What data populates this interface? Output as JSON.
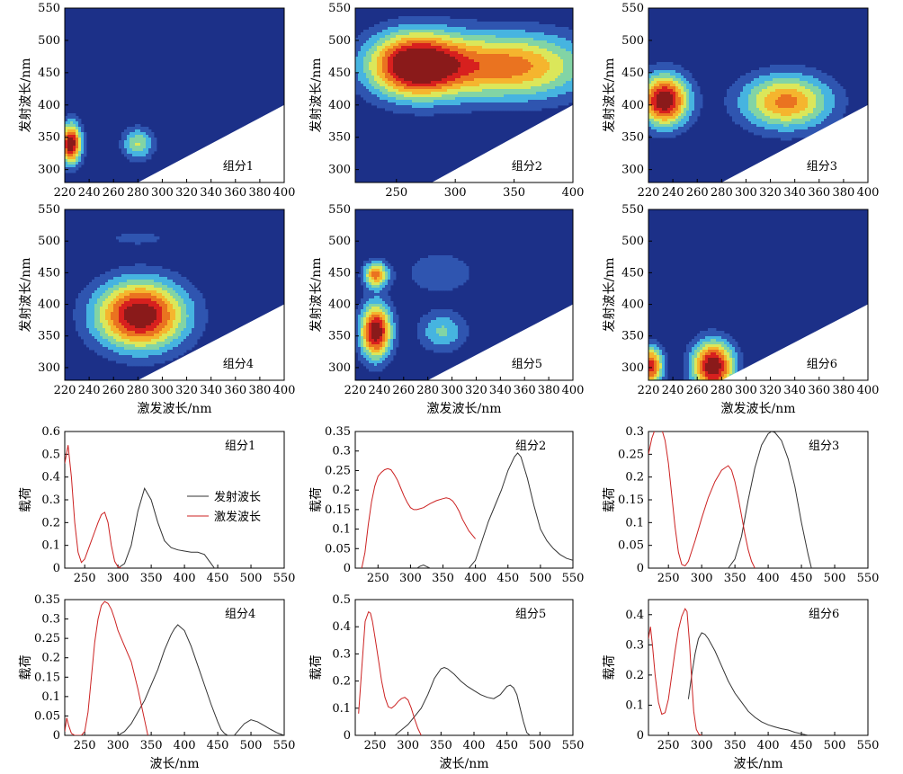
{
  "colors": {
    "contour_levels": [
      "#1c3088",
      "#2f55b0",
      "#46b4e0",
      "#82d4a5",
      "#dbe75a",
      "#f5b52e",
      "#ea7320",
      "#d7201e",
      "#8a1a1a"
    ],
    "emission_line": "#333333",
    "excitation_line": "#cc2222"
  },
  "legend": {
    "emission": "发射波长",
    "excitation": "激发波长"
  },
  "chart_data": [
    {
      "type": "heatmap",
      "label": "组分1",
      "xlabel": "",
      "ylabel": "发射波长/nm",
      "xlim": [
        220,
        400
      ],
      "ylim": [
        280,
        550
      ],
      "xticks": [
        220,
        240,
        260,
        280,
        300,
        320,
        340,
        360,
        380,
        400
      ],
      "yticks": [
        300,
        350,
        400,
        450,
        500,
        550
      ],
      "peaks": [
        {
          "ex": 225,
          "em": 340,
          "w": 6,
          "h": 22,
          "a": 1.0
        },
        {
          "ex": 280,
          "em": 340,
          "w": 9,
          "h": 17,
          "a": 0.45
        }
      ]
    },
    {
      "type": "heatmap",
      "label": "组分2",
      "xlabel": "",
      "ylabel": "发射波长/nm",
      "xlim": [
        215,
        400
      ],
      "ylim": [
        280,
        550
      ],
      "xticks": [
        250,
        300,
        350,
        400
      ],
      "yticks": [
        300,
        350,
        400,
        450,
        500,
        550
      ],
      "peaks": [
        {
          "ex": 265,
          "em": 462,
          "w": 28,
          "h": 35,
          "a": 1.0
        },
        {
          "ex": 345,
          "em": 460,
          "w": 48,
          "h": 36,
          "a": 0.72
        }
      ]
    },
    {
      "type": "heatmap",
      "label": "组分3",
      "xlabel": "",
      "ylabel": "发射波长/nm",
      "xlim": [
        220,
        400
      ],
      "ylim": [
        280,
        550
      ],
      "xticks": [
        220,
        240,
        260,
        280,
        300,
        320,
        340,
        360,
        380,
        400
      ],
      "yticks": [
        300,
        350,
        400,
        450,
        500,
        550
      ],
      "peaks": [
        {
          "ex": 233,
          "em": 407,
          "w": 14,
          "h": 28,
          "a": 1.0
        },
        {
          "ex": 333,
          "em": 405,
          "w": 26,
          "h": 30,
          "a": 0.7
        }
      ]
    },
    {
      "type": "heatmap",
      "label": "组分4",
      "xlabel": "激发波长/nm",
      "ylabel": "发射波长/nm",
      "xlim": [
        220,
        400
      ],
      "ylim": [
        280,
        550
      ],
      "xticks": [
        220,
        240,
        260,
        280,
        300,
        320,
        340,
        360,
        380,
        400
      ],
      "yticks": [
        300,
        350,
        400,
        450,
        500,
        550
      ],
      "peaks": [
        {
          "ex": 282,
          "em": 383,
          "w": 26,
          "h": 38,
          "a": 1.0
        },
        {
          "ex": 280,
          "em": 505,
          "w": 15,
          "h": 7,
          "a": 0.2
        }
      ]
    },
    {
      "type": "heatmap",
      "label": "组分5",
      "xlabel": "激发波长/nm",
      "ylabel": "发射波长/nm",
      "xlim": [
        220,
        400
      ],
      "ylim": [
        280,
        550
      ],
      "xticks": [
        220,
        240,
        260,
        280,
        300,
        320,
        340,
        360,
        380,
        400
      ],
      "yticks": [
        300,
        350,
        400,
        450,
        500,
        550
      ],
      "peaks": [
        {
          "ex": 237,
          "em": 357,
          "w": 9,
          "h": 30,
          "a": 1.0
        },
        {
          "ex": 237,
          "em": 447,
          "w": 7,
          "h": 14,
          "a": 0.7
        },
        {
          "ex": 292,
          "em": 357,
          "w": 14,
          "h": 22,
          "a": 0.35
        },
        {
          "ex": 290,
          "em": 450,
          "w": 24,
          "h": 28,
          "a": 0.18
        }
      ]
    },
    {
      "type": "heatmap",
      "label": "组分6",
      "xlabel": "激发波长/nm",
      "ylabel": "发射波长/nm",
      "xlim": [
        220,
        400
      ],
      "ylim": [
        280,
        550
      ],
      "xticks": [
        220,
        240,
        260,
        280,
        300,
        320,
        340,
        360,
        380,
        400
      ],
      "yticks": [
        300,
        350,
        400,
        450,
        500,
        550
      ],
      "peaks": [
        {
          "ex": 222,
          "em": 302,
          "w": 7,
          "h": 22,
          "a": 0.85
        },
        {
          "ex": 273,
          "em": 302,
          "w": 12,
          "h": 28,
          "a": 1.0
        }
      ]
    },
    {
      "type": "line",
      "label": "组分1",
      "xlabel": "",
      "ylabel": "载荷",
      "xlim": [
        220,
        550
      ],
      "ylim": [
        0,
        0.6
      ],
      "xticks": [
        250,
        300,
        350,
        400,
        450,
        500,
        550
      ],
      "yticks": [
        0,
        0.1,
        0.2,
        0.3,
        0.4,
        0.5,
        0.6
      ],
      "series": [
        {
          "role": "emission",
          "x": [
            300,
            310,
            320,
            330,
            340,
            350,
            360,
            370,
            380,
            390,
            400,
            410,
            420,
            430,
            440,
            445
          ],
          "y": [
            0,
            0.02,
            0.1,
            0.25,
            0.35,
            0.3,
            0.2,
            0.12,
            0.09,
            0.08,
            0.075,
            0.07,
            0.07,
            0.06,
            0.02,
            0
          ]
        },
        {
          "role": "excitation",
          "x": [
            220,
            225,
            230,
            235,
            240,
            245,
            250,
            255,
            260,
            265,
            270,
            275,
            280,
            285,
            290,
            295,
            300,
            305
          ],
          "y": [
            0.46,
            0.54,
            0.4,
            0.2,
            0.07,
            0.025,
            0.04,
            0.08,
            0.12,
            0.16,
            0.2,
            0.235,
            0.245,
            0.2,
            0.1,
            0.03,
            0.005,
            0
          ]
        }
      ]
    },
    {
      "type": "line",
      "label": "组分2",
      "xlabel": "",
      "ylabel": "载荷",
      "xlim": [
        215,
        550
      ],
      "ylim": [
        0,
        0.35
      ],
      "xticks": [
        250,
        300,
        350,
        400,
        450,
        500,
        550
      ],
      "yticks": [
        0,
        0.05,
        0.1,
        0.15,
        0.2,
        0.25,
        0.3,
        0.35
      ],
      "series": [
        {
          "role": "emission",
          "x": [
            310,
            315,
            320,
            325,
            330,
            390,
            400,
            410,
            420,
            430,
            440,
            450,
            460,
            465,
            470,
            480,
            490,
            500,
            510,
            520,
            530,
            540,
            550
          ],
          "y": [
            0,
            0.005,
            0.008,
            0.004,
            0,
            0,
            0.02,
            0.07,
            0.12,
            0.16,
            0.2,
            0.25,
            0.285,
            0.295,
            0.285,
            0.23,
            0.16,
            0.1,
            0.07,
            0.05,
            0.035,
            0.025,
            0.02
          ]
        },
        {
          "role": "excitation",
          "x": [
            225,
            230,
            235,
            240,
            245,
            250,
            255,
            260,
            265,
            270,
            275,
            280,
            285,
            290,
            295,
            300,
            305,
            310,
            320,
            330,
            340,
            350,
            355,
            360,
            365,
            370,
            375,
            380,
            390,
            400
          ],
          "y": [
            0,
            0.04,
            0.11,
            0.17,
            0.21,
            0.235,
            0.245,
            0.252,
            0.255,
            0.252,
            0.24,
            0.225,
            0.205,
            0.185,
            0.168,
            0.155,
            0.15,
            0.15,
            0.155,
            0.165,
            0.173,
            0.178,
            0.18,
            0.178,
            0.172,
            0.16,
            0.145,
            0.125,
            0.095,
            0.075
          ]
        }
      ]
    },
    {
      "type": "line",
      "label": "组分3",
      "xlabel": "",
      "ylabel": "载荷",
      "xlim": [
        220,
        550
      ],
      "ylim": [
        0,
        0.3
      ],
      "xticks": [
        250,
        300,
        350,
        400,
        450,
        500,
        550
      ],
      "yticks": [
        0,
        0.05,
        0.1,
        0.15,
        0.2,
        0.25,
        0.3
      ],
      "series": [
        {
          "role": "emission",
          "x": [
            340,
            350,
            360,
            370,
            380,
            390,
            400,
            405,
            410,
            420,
            430,
            440,
            450,
            460,
            465
          ],
          "y": [
            0,
            0.02,
            0.07,
            0.15,
            0.22,
            0.27,
            0.295,
            0.3,
            0.298,
            0.28,
            0.24,
            0.18,
            0.1,
            0.03,
            0
          ]
        },
        {
          "role": "excitation",
          "x": [
            220,
            225,
            230,
            235,
            240,
            245,
            250,
            255,
            260,
            265,
            270,
            275,
            280,
            290,
            300,
            310,
            320,
            330,
            335,
            340,
            345,
            350,
            355,
            360,
            365,
            370,
            375,
            380
          ],
          "y": [
            0.25,
            0.285,
            0.305,
            0.31,
            0.305,
            0.28,
            0.23,
            0.16,
            0.09,
            0.035,
            0.008,
            0.005,
            0.015,
            0.06,
            0.11,
            0.155,
            0.19,
            0.215,
            0.22,
            0.225,
            0.215,
            0.19,
            0.155,
            0.115,
            0.075,
            0.04,
            0.015,
            0
          ]
        }
      ]
    },
    {
      "type": "line",
      "label": "组分4",
      "xlabel": "波长/nm",
      "ylabel": "载荷",
      "xlim": [
        220,
        550
      ],
      "ylim": [
        0,
        0.35
      ],
      "xticks": [
        250,
        300,
        350,
        400,
        450,
        500,
        550
      ],
      "yticks": [
        0,
        0.05,
        0.1,
        0.15,
        0.2,
        0.25,
        0.3,
        0.35
      ],
      "series": [
        {
          "role": "emission",
          "x": [
            300,
            310,
            320,
            330,
            340,
            350,
            360,
            370,
            380,
            385,
            390,
            400,
            410,
            420,
            430,
            440,
            450,
            455,
            460,
            465,
            470,
            475,
            480,
            490,
            500,
            510,
            520,
            530,
            540,
            550
          ],
          "y": [
            0,
            0.01,
            0.03,
            0.06,
            0.09,
            0.13,
            0.17,
            0.22,
            0.26,
            0.275,
            0.285,
            0.27,
            0.23,
            0.18,
            0.13,
            0.08,
            0.035,
            0.015,
            0.005,
            0,
            0,
            0,
            0.01,
            0.03,
            0.04,
            0.035,
            0.025,
            0.015,
            0.006,
            0
          ]
        },
        {
          "role": "excitation",
          "x": [
            220,
            223,
            226,
            230,
            235,
            240,
            245,
            250,
            255,
            260,
            265,
            270,
            275,
            280,
            285,
            290,
            295,
            300,
            310,
            320,
            330,
            335,
            340,
            345
          ],
          "y": [
            0.01,
            0.045,
            0.025,
            0.005,
            0,
            0,
            0,
            0.01,
            0.06,
            0.15,
            0.24,
            0.3,
            0.335,
            0.345,
            0.34,
            0.325,
            0.3,
            0.27,
            0.23,
            0.19,
            0.12,
            0.08,
            0.04,
            0
          ]
        }
      ]
    },
    {
      "type": "line",
      "label": "组分5",
      "xlabel": "波长/nm",
      "ylabel": "载荷",
      "xlim": [
        220,
        550
      ],
      "ylim": [
        0,
        0.5
      ],
      "xticks": [
        250,
        300,
        350,
        400,
        450,
        500,
        550
      ],
      "yticks": [
        0,
        0.1,
        0.2,
        0.3,
        0.4,
        0.5
      ],
      "series": [
        {
          "role": "emission",
          "x": [
            280,
            290,
            300,
            310,
            320,
            330,
            340,
            350,
            355,
            360,
            370,
            380,
            390,
            400,
            410,
            420,
            430,
            440,
            450,
            455,
            460,
            465,
            470,
            475,
            480,
            485
          ],
          "y": [
            0,
            0.02,
            0.04,
            0.07,
            0.1,
            0.15,
            0.21,
            0.245,
            0.25,
            0.245,
            0.225,
            0.2,
            0.18,
            0.165,
            0.15,
            0.14,
            0.135,
            0.15,
            0.18,
            0.185,
            0.175,
            0.15,
            0.1,
            0.05,
            0.01,
            0
          ]
        },
        {
          "role": "excitation",
          "x": [
            225,
            230,
            235,
            240,
            243,
            246,
            250,
            255,
            260,
            265,
            270,
            275,
            280,
            285,
            290,
            295,
            300,
            305,
            310,
            315,
            320
          ],
          "y": [
            0.08,
            0.25,
            0.42,
            0.455,
            0.45,
            0.42,
            0.36,
            0.28,
            0.2,
            0.14,
            0.105,
            0.1,
            0.11,
            0.125,
            0.135,
            0.14,
            0.13,
            0.1,
            0.06,
            0.025,
            0
          ]
        }
      ]
    },
    {
      "type": "line",
      "label": "组分6",
      "xlabel": "波长/nm",
      "ylabel": "载荷",
      "xlim": [
        220,
        550
      ],
      "ylim": [
        0,
        0.45
      ],
      "xticks": [
        250,
        300,
        350,
        400,
        450,
        500,
        550
      ],
      "yticks": [
        0,
        0.1,
        0.2,
        0.3,
        0.4
      ],
      "series": [
        {
          "role": "emission",
          "x": [
            280,
            285,
            290,
            295,
            300,
            305,
            310,
            320,
            330,
            340,
            350,
            360,
            370,
            380,
            390,
            400,
            410,
            420,
            430,
            440,
            450,
            460
          ],
          "y": [
            0.12,
            0.2,
            0.27,
            0.32,
            0.34,
            0.335,
            0.32,
            0.28,
            0.23,
            0.18,
            0.14,
            0.11,
            0.08,
            0.06,
            0.045,
            0.035,
            0.028,
            0.022,
            0.018,
            0.01,
            0.005,
            0
          ]
        },
        {
          "role": "excitation",
          "x": [
            220,
            223,
            226,
            230,
            235,
            240,
            245,
            250,
            255,
            260,
            265,
            270,
            275,
            278,
            282,
            285,
            288,
            292,
            296,
            300
          ],
          "y": [
            0.32,
            0.36,
            0.3,
            0.2,
            0.11,
            0.07,
            0.075,
            0.12,
            0.2,
            0.28,
            0.35,
            0.395,
            0.42,
            0.41,
            0.3,
            0.18,
            0.08,
            0.02,
            0.003,
            0
          ]
        }
      ]
    }
  ]
}
